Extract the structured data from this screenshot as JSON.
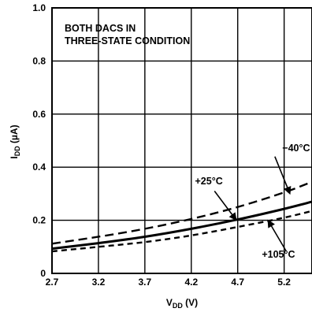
{
  "chart_data": {
    "type": "line",
    "annotation": [
      "BOTH DACS IN",
      "THREE-STATE CONDITION"
    ],
    "xlabel": {
      "main": "V",
      "sub": "DD",
      "unit": " (V)"
    },
    "ylabel": {
      "main": "I",
      "sub": "DD",
      "unit": " (µA)"
    },
    "xlim": [
      2.7,
      5.5
    ],
    "ylim": [
      0,
      1.0
    ],
    "x_ticks": [
      2.7,
      3.2,
      3.7,
      4.2,
      4.7,
      5.2
    ],
    "x_tick_labels": [
      "2.7",
      "3.2",
      "3.7",
      "4.2",
      "4.7",
      "5.2"
    ],
    "y_ticks": [
      0,
      0.2,
      0.4,
      0.6,
      0.8,
      1.0
    ],
    "y_tick_labels": [
      "0",
      "0.2",
      "0.4",
      "0.6",
      "0.8",
      "1.0"
    ],
    "grid": true,
    "series": [
      {
        "name": "−40°C",
        "style": "dashed",
        "x": [
          2.7,
          3.2,
          3.7,
          4.2,
          4.7,
          5.2,
          5.5
        ],
        "values": [
          0.112,
          0.138,
          0.168,
          0.205,
          0.25,
          0.305,
          0.345
        ]
      },
      {
        "name": "+25°C",
        "style": "solid",
        "x": [
          2.7,
          3.2,
          3.7,
          4.2,
          4.7,
          5.2,
          5.5
        ],
        "values": [
          0.093,
          0.114,
          0.138,
          0.168,
          0.203,
          0.243,
          0.27
        ]
      },
      {
        "name": "+105°C",
        "style": "dashed",
        "x": [
          2.7,
          3.2,
          3.7,
          4.2,
          4.7,
          5.2,
          5.5
        ],
        "values": [
          0.083,
          0.1,
          0.118,
          0.143,
          0.175,
          0.21,
          0.235
        ]
      }
    ],
    "labels": [
      {
        "series": "−40°C",
        "text": "−40°C",
        "text_x": 5.18,
        "text_y": 0.46,
        "arrow_x": 5.26,
        "arrow_y": 0.302,
        "pointer_from_x": 5.1,
        "pointer_from_y": 0.44
      },
      {
        "series": "+25°C",
        "text": "+25°C",
        "text_x": 4.24,
        "text_y": 0.335,
        "arrow_x": 4.68,
        "arrow_y": 0.203,
        "pointer_from_x": 4.45,
        "pointer_from_y": 0.31
      },
      {
        "series": "+105°C",
        "text": "+105°C",
        "text_x": 4.96,
        "text_y": 0.06,
        "arrow_x": 5.03,
        "arrow_y": 0.198,
        "pointer_from_x": 5.22,
        "pointer_from_y": 0.085
      }
    ]
  }
}
